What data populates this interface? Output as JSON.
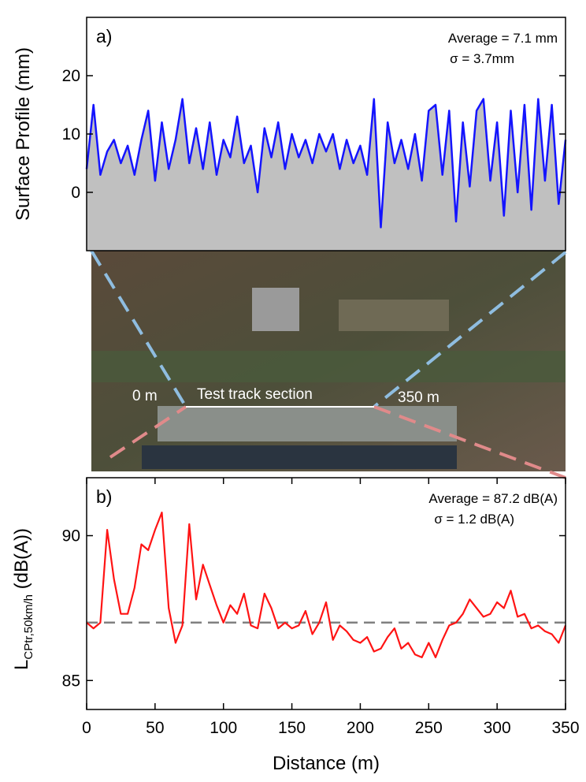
{
  "chart_data": [
    {
      "type": "area",
      "panel_label": "a)",
      "ylabel": "Surface Profile (mm)",
      "annotations": [
        "Average = 7.1 mm",
        "σ = 3.7mm"
      ],
      "x": [
        0,
        5,
        10,
        15,
        20,
        25,
        30,
        35,
        40,
        45,
        50,
        55,
        60,
        65,
        70,
        75,
        80,
        85,
        90,
        95,
        100,
        105,
        110,
        115,
        120,
        125,
        130,
        135,
        140,
        145,
        150,
        155,
        160,
        165,
        170,
        175,
        180,
        185,
        190,
        195,
        200,
        205,
        210,
        215,
        220,
        225,
        230,
        235,
        240,
        245,
        250,
        255,
        260,
        265,
        270,
        275,
        280,
        285,
        290,
        295,
        300,
        305,
        310,
        315,
        320,
        325,
        330,
        335,
        340,
        345,
        350
      ],
      "values": [
        4,
        15,
        3,
        7,
        9,
        5,
        8,
        3,
        9,
        14,
        2,
        12,
        4,
        9,
        16,
        5,
        11,
        4,
        12,
        3,
        9,
        6,
        13,
        5,
        8,
        0,
        11,
        6,
        12,
        4,
        10,
        6,
        9,
        5,
        10,
        7,
        10,
        4,
        9,
        5,
        8,
        3,
        16,
        -6,
        12,
        5,
        9,
        4,
        10,
        2,
        14,
        15,
        3,
        14,
        -5,
        12,
        1,
        14,
        16,
        2,
        12,
        -4,
        14,
        0,
        15,
        -3,
        16,
        2,
        15,
        -2,
        9
      ],
      "color": "#1414ff",
      "fill_color": "#c0c0c0",
      "xlim": [
        0,
        350
      ],
      "ylim": [
        -10,
        30
      ],
      "yticks": [
        0,
        10,
        20
      ]
    },
    {
      "type": "line",
      "panel_label": "b)",
      "ylabel_parts": [
        "L",
        "CPtr,50km/h",
        " (dB(A))"
      ],
      "xlabel": "Distance (m)",
      "annotations": [
        "Average = 87.2 dB(A)",
        "σ = 1.2 dB(A)"
      ],
      "x": [
        0,
        5,
        10,
        15,
        20,
        25,
        30,
        35,
        40,
        45,
        50,
        55,
        60,
        65,
        70,
        75,
        80,
        85,
        90,
        95,
        100,
        105,
        110,
        115,
        120,
        125,
        130,
        135,
        140,
        145,
        150,
        155,
        160,
        165,
        170,
        175,
        180,
        185,
        190,
        195,
        200,
        205,
        210,
        215,
        220,
        225,
        230,
        235,
        240,
        245,
        250,
        255,
        260,
        265,
        270,
        275,
        280,
        285,
        290,
        295,
        300,
        305,
        310,
        315,
        320,
        325,
        330,
        335,
        340,
        345,
        350
      ],
      "values": [
        87.0,
        86.8,
        87.0,
        90.2,
        88.5,
        87.3,
        87.3,
        88.2,
        89.7,
        89.5,
        90.2,
        90.8,
        87.5,
        86.3,
        86.9,
        90.4,
        87.8,
        89.0,
        88.3,
        87.6,
        87.0,
        87.6,
        87.3,
        88.0,
        86.9,
        86.8,
        88.0,
        87.5,
        86.8,
        87.0,
        86.8,
        86.9,
        87.4,
        86.6,
        87.0,
        87.7,
        86.4,
        86.9,
        86.7,
        86.4,
        86.3,
        86.5,
        86.0,
        86.1,
        86.5,
        86.8,
        86.1,
        86.3,
        85.9,
        85.8,
        86.3,
        85.8,
        86.4,
        86.9,
        87.0,
        87.3,
        87.8,
        87.5,
        87.2,
        87.3,
        87.7,
        87.5,
        88.1,
        87.2,
        87.3,
        86.8,
        86.9,
        86.7,
        86.6,
        86.3,
        86.9
      ],
      "color": "#ff1414",
      "reference_line": 87.0,
      "reference_color": "#808080",
      "xlim": [
        0,
        350
      ],
      "ylim": [
        84,
        92
      ],
      "yticks": [
        85,
        90
      ],
      "xticks": [
        0,
        50,
        100,
        150,
        200,
        250,
        300,
        350
      ]
    }
  ],
  "map": {
    "labels": [
      "0 m",
      "Test track section",
      "350 m"
    ]
  }
}
